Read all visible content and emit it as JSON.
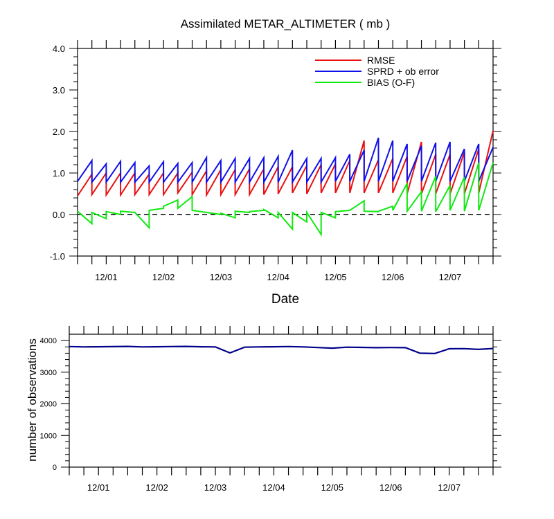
{
  "figure": {
    "title": "Assimilated METAR_ALTIMETER ( mb )",
    "xlabel_top": "Date",
    "ylabel_bottom": "number of observations",
    "date_ticks": [
      "12/01",
      "12/02",
      "12/03",
      "12/04",
      "12/05",
      "12/06",
      "12/07"
    ],
    "colors": {
      "rmse": "#e81010",
      "sprd": "#1010e8",
      "bias": "#10e810",
      "obs": "#00008b",
      "zero_line": "#000000"
    }
  },
  "chart_data": [
    {
      "type": "line",
      "title": "Assimilated METAR_ALTIMETER ( mb )",
      "xlabel": "Date",
      "ylabel": "",
      "x_unit": "days after 11/30 00Z",
      "x_range": [
        0.5,
        7.75
      ],
      "ylim": [
        -1.0,
        4.0
      ],
      "y_ticks": [
        "-1.0",
        "0.0",
        "1.0",
        "2.0",
        "3.0",
        "4.0"
      ],
      "x_ticks": [
        {
          "x": 1,
          "label": "12/01"
        },
        {
          "x": 2,
          "label": "12/02"
        },
        {
          "x": 3,
          "label": "12/03"
        },
        {
          "x": 4,
          "label": "12/04"
        },
        {
          "x": 5,
          "label": "12/05"
        },
        {
          "x": 6,
          "label": "12/06"
        },
        {
          "x": 7,
          "label": "12/07"
        }
      ],
      "legend": "top-right",
      "reference_line": {
        "y": 0.0,
        "style": "dashed"
      },
      "series": [
        {
          "name": "RMSE",
          "color": "#e81010",
          "x": [
            0.5,
            0.75,
            0.75,
            1.0,
            1.0,
            1.25,
            1.25,
            1.5,
            1.5,
            1.75,
            1.75,
            2.0,
            2.0,
            2.25,
            2.25,
            2.5,
            2.5,
            2.75,
            2.75,
            3.0,
            3.0,
            3.25,
            3.25,
            3.5,
            3.5,
            3.75,
            3.75,
            4.0,
            4.0,
            4.25,
            4.25,
            4.5,
            4.5,
            4.75,
            4.75,
            5.0,
            5.0,
            5.25,
            5.25,
            5.5,
            5.5,
            5.75,
            5.75,
            6.0,
            6.0,
            6.25,
            6.25,
            6.5,
            6.5,
            6.75,
            6.75,
            7.0,
            7.0,
            7.25,
            7.25,
            7.5,
            7.5,
            7.75
          ],
          "y": [
            0.45,
            0.97,
            0.48,
            1.0,
            0.47,
            1.0,
            0.47,
            1.0,
            0.48,
            0.97,
            0.48,
            1.0,
            0.48,
            1.0,
            0.52,
            1.02,
            0.48,
            1.05,
            0.47,
            1.08,
            0.48,
            1.08,
            0.48,
            1.1,
            0.48,
            1.1,
            0.48,
            1.15,
            0.5,
            1.15,
            0.52,
            1.18,
            0.5,
            1.2,
            0.52,
            1.22,
            0.52,
            1.3,
            0.52,
            1.78,
            0.52,
            1.32,
            0.52,
            1.35,
            0.52,
            1.4,
            0.5,
            1.75,
            0.5,
            1.45,
            0.5,
            1.45,
            0.5,
            1.5,
            0.5,
            1.58,
            0.52,
            2.02
          ]
        },
        {
          "name": "SPRD + ob error",
          "color": "#1010e8",
          "x": [
            0.5,
            0.75,
            0.75,
            1.0,
            1.0,
            1.25,
            1.25,
            1.5,
            1.5,
            1.75,
            1.75,
            2.0,
            2.0,
            2.25,
            2.25,
            2.5,
            2.5,
            2.75,
            2.75,
            3.0,
            3.0,
            3.25,
            3.25,
            3.5,
            3.5,
            3.75,
            3.75,
            4.0,
            4.0,
            4.25,
            4.25,
            4.5,
            4.5,
            4.75,
            4.75,
            5.0,
            5.0,
            5.25,
            5.25,
            5.5,
            5.5,
            5.75,
            5.75,
            6.0,
            6.0,
            6.25,
            6.25,
            6.5,
            6.5,
            6.75,
            6.75,
            7.0,
            7.0,
            7.25,
            7.25,
            7.5,
            7.5,
            7.75
          ],
          "y": [
            0.8,
            1.3,
            0.78,
            1.22,
            0.78,
            1.28,
            0.78,
            1.25,
            0.78,
            1.17,
            0.78,
            1.27,
            0.78,
            1.23,
            0.78,
            1.25,
            0.78,
            1.37,
            0.78,
            1.3,
            0.78,
            1.35,
            0.78,
            1.35,
            0.78,
            1.37,
            0.78,
            1.4,
            0.78,
            1.55,
            0.78,
            1.35,
            0.78,
            1.35,
            0.78,
            1.37,
            0.8,
            1.45,
            0.8,
            1.55,
            0.8,
            1.85,
            0.8,
            1.78,
            0.8,
            1.7,
            0.8,
            1.65,
            0.8,
            1.73,
            0.8,
            1.75,
            0.8,
            1.58,
            0.8,
            1.7,
            0.8,
            1.62
          ]
        },
        {
          "name": "BIAS (O-F)",
          "color": "#10e810",
          "x": [
            0.5,
            0.75,
            0.75,
            1.0,
            1.0,
            1.25,
            1.25,
            1.5,
            1.5,
            1.75,
            1.75,
            2.0,
            2.0,
            2.25,
            2.25,
            2.5,
            2.5,
            2.75,
            2.75,
            3.0,
            3.0,
            3.25,
            3.25,
            3.5,
            3.5,
            3.75,
            3.75,
            4.0,
            4.0,
            4.25,
            4.25,
            4.5,
            4.5,
            4.75,
            4.75,
            5.0,
            5.0,
            5.25,
            5.25,
            5.5,
            5.5,
            5.75,
            5.75,
            6.0,
            6.0,
            6.25,
            6.25,
            6.5,
            6.5,
            6.75,
            6.75,
            7.0,
            7.0,
            7.25,
            7.25,
            7.5,
            7.5,
            7.75
          ],
          "y": [
            0.08,
            -0.22,
            0.05,
            -0.1,
            0.07,
            0.0,
            0.08,
            0.05,
            0.05,
            -0.32,
            0.1,
            0.15,
            0.2,
            0.35,
            0.15,
            0.43,
            0.1,
            0.05,
            0.05,
            0.0,
            0.03,
            -0.08,
            0.08,
            0.05,
            0.07,
            0.1,
            0.12,
            -0.08,
            0.05,
            -0.35,
            0.05,
            -0.18,
            0.05,
            -0.48,
            0.05,
            -0.08,
            0.07,
            0.1,
            0.1,
            0.33,
            0.08,
            0.07,
            0.08,
            0.2,
            0.1,
            0.75,
            0.08,
            0.55,
            0.08,
            0.92,
            0.07,
            0.7,
            0.1,
            0.9,
            0.08,
            1.25,
            0.1,
            1.25
          ]
        }
      ]
    },
    {
      "type": "line",
      "title": "",
      "xlabel": "",
      "ylabel": "number of observations",
      "x_unit": "days after 11/30 00Z",
      "x_range": [
        0.5,
        7.75
      ],
      "ylim": [
        0,
        4200
      ],
      "y_ticks": [
        "0",
        "1000",
        "2000",
        "3000",
        "4000"
      ],
      "x_ticks": [
        {
          "x": 1,
          "label": "12/01"
        },
        {
          "x": 2,
          "label": "12/02"
        },
        {
          "x": 3,
          "label": "12/03"
        },
        {
          "x": 4,
          "label": "12/04"
        },
        {
          "x": 5,
          "label": "12/05"
        },
        {
          "x": 6,
          "label": "12/06"
        },
        {
          "x": 7,
          "label": "12/07"
        }
      ],
      "series": [
        {
          "name": "",
          "color": "#00008b",
          "x": [
            0.5,
            0.75,
            1.0,
            1.25,
            1.5,
            1.75,
            2.0,
            2.25,
            2.5,
            2.75,
            3.0,
            3.25,
            3.5,
            3.75,
            4.0,
            4.25,
            4.5,
            4.75,
            5.0,
            5.25,
            5.5,
            5.75,
            6.0,
            6.25,
            6.5,
            6.75,
            7.0,
            7.25,
            7.5,
            7.75
          ],
          "y": [
            3810,
            3800,
            3805,
            3808,
            3815,
            3800,
            3805,
            3810,
            3815,
            3805,
            3800,
            3610,
            3790,
            3800,
            3805,
            3810,
            3800,
            3780,
            3760,
            3790,
            3785,
            3775,
            3780,
            3775,
            3600,
            3590,
            3740,
            3745,
            3720,
            3750
          ]
        }
      ]
    }
  ]
}
